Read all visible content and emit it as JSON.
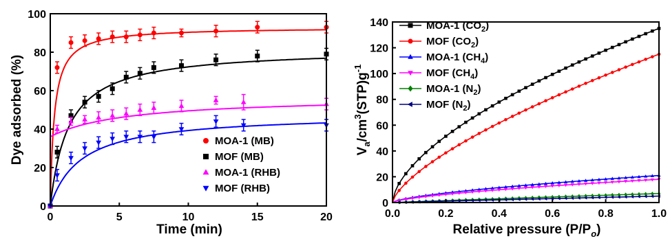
{
  "chart_data": [
    {
      "type": "scatter",
      "xlabel": "Time (min)",
      "ylabel": "Dye adsorbed (%)",
      "xlim": [
        0,
        20
      ],
      "ylim": [
        0,
        100
      ],
      "xticks": [
        "0",
        "5",
        "10",
        "15",
        "20"
      ],
      "yticks": [
        "0",
        "20",
        "40",
        "60",
        "80",
        "100"
      ],
      "legend_position": "bottom-right",
      "grid": false,
      "series": [
        {
          "name": "MOA-1 (MB)",
          "color": "#ff0000",
          "marker": "circle",
          "x": [
            0,
            0.5,
            1.5,
            2.5,
            3.5,
            4.5,
            5.5,
            6.5,
            7.5,
            9.5,
            12,
            15,
            20
          ],
          "y": [
            0,
            72,
            85,
            86,
            87,
            88,
            88,
            89,
            90,
            90,
            91,
            93,
            93
          ],
          "err": [
            0,
            3,
            3,
            3,
            3,
            3,
            3,
            3,
            3,
            2,
            3,
            3,
            3
          ],
          "fit": {
            "a": 93,
            "k": 3.4
          }
        },
        {
          "name": "MOF (MB)",
          "color": "#000000",
          "marker": "square",
          "x": [
            0,
            0.5,
            1.5,
            2.5,
            3.5,
            4.5,
            5.5,
            6.5,
            7.5,
            9.5,
            12,
            15,
            20
          ],
          "y": [
            0,
            28,
            47,
            54,
            57,
            61,
            67,
            69,
            72,
            73,
            76,
            78,
            79
          ],
          "err": [
            0,
            3,
            3,
            3,
            3,
            3,
            3,
            3,
            3,
            3,
            3,
            3,
            3
          ],
          "fit": {
            "a": 82,
            "k": 0.75
          }
        },
        {
          "name": "MOA-1 (RHB)",
          "color": "#ff00ff",
          "marker": "triangle-up",
          "x": [
            0,
            0.5,
            1.5,
            2.5,
            3.5,
            4.5,
            5.5,
            6.5,
            7.5,
            9.5,
            12,
            14,
            20
          ],
          "y": [
            0,
            40,
            44,
            45,
            46,
            47,
            48,
            50,
            51,
            52,
            55,
            54,
            53
          ],
          "err": [
            0,
            2,
            2,
            2,
            3,
            3,
            3,
            3,
            3,
            3,
            2,
            4,
            3
          ],
          "fit": {
            "base": 36,
            "a": 21,
            "k": 0.18
          }
        },
        {
          "name": "MOF (RHB)",
          "color": "#0000ff",
          "marker": "triangle-down",
          "x": [
            0,
            0.5,
            1.5,
            2.5,
            3.5,
            4.5,
            5.5,
            6.5,
            7.5,
            9.5,
            12,
            14,
            20
          ],
          "y": [
            0,
            16,
            25,
            30,
            33,
            35,
            36,
            36,
            36,
            40,
            44,
            42,
            42
          ],
          "err": [
            0,
            3,
            3,
            3,
            3,
            3,
            3,
            3,
            3,
            3,
            3,
            3,
            3
          ],
          "fit": {
            "a": 48,
            "k": 0.45
          }
        }
      ]
    },
    {
      "type": "line",
      "xlabel": "Relative pressure (P/P",
      "xlabel_sub": "o",
      "xlabel_close": ")",
      "ylabel": "V",
      "ylabel_sub": "a",
      "ylabel_mid": "/cm",
      "ylabel_sup": "3",
      "ylabel_tail": "(STP)g",
      "ylabel_sup2": "-1",
      "xlim": [
        0,
        1
      ],
      "ylim": [
        0,
        140
      ],
      "xticks": [
        "0.0",
        "0.2",
        "0.4",
        "0.6",
        "0.8",
        "1.0"
      ],
      "yticks": [
        "0",
        "20",
        "40",
        "60",
        "80",
        "100",
        "120",
        "140"
      ],
      "legend_position": "top-left",
      "grid": false,
      "series": [
        {
          "name": "MOA-1 (CO",
          "sub": "2",
          "close": ")",
          "color": "#000000",
          "marker": "square",
          "end": 135,
          "shape": 0.6
        },
        {
          "name": "MOF (CO",
          "sub": "2",
          "close": ")",
          "color": "#ff0000",
          "marker": "circle",
          "end": 115,
          "shape": 0.68
        },
        {
          "name": "MOA-1 (CH",
          "sub": "4",
          "close": ")",
          "color": "#0000ff",
          "marker": "triangle-up",
          "end": 21,
          "shape": 0.65
        },
        {
          "name": "MOF (CH",
          "sub": "4",
          "close": ")",
          "color": "#ff00ff",
          "marker": "triangle-down",
          "end": 18,
          "shape": 0.65
        },
        {
          "name": "MOA-1 (N",
          "sub": "2",
          "close": ")",
          "color": "#008000",
          "marker": "diamond",
          "end": 7,
          "shape": 0.95
        },
        {
          "name": "MOF (N",
          "sub": "2",
          "close": ")",
          "color": "#000080",
          "marker": "triangle-left",
          "end": 5,
          "shape": 0.95
        }
      ]
    }
  ]
}
